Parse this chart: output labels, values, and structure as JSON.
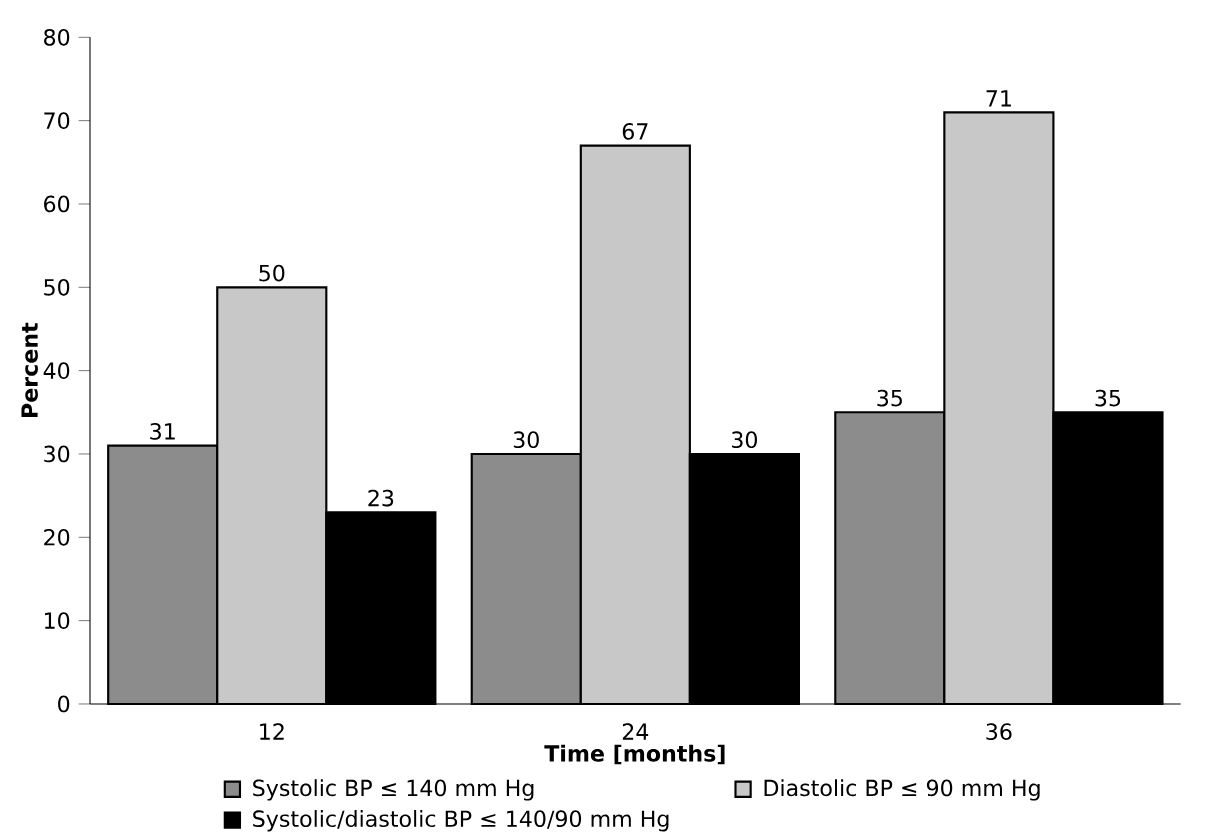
{
  "chart_data": {
    "type": "bar",
    "xlabel": "Time [months]",
    "ylabel": "Percent",
    "categories": [
      "12",
      "24",
      "36"
    ],
    "series": [
      {
        "name": "Systolic BP ≤ 140 mm Hg",
        "color": "#8c8c8c",
        "values": [
          31,
          30,
          35
        ]
      },
      {
        "name": "Diastolic BP ≤ 90 mm Hg",
        "color": "#c8c8c8",
        "values": [
          50,
          67,
          71
        ]
      },
      {
        "name": "Systolic/diastolic BP ≤ 140/90 mm Hg",
        "color": "#000000",
        "values": [
          23,
          30,
          35
        ]
      }
    ],
    "ylim": [
      0,
      80
    ],
    "yticks": [
      0,
      10,
      20,
      30,
      40,
      50,
      60,
      70,
      80
    ],
    "data_labels": true,
    "legend": "bottom",
    "grid": false
  }
}
